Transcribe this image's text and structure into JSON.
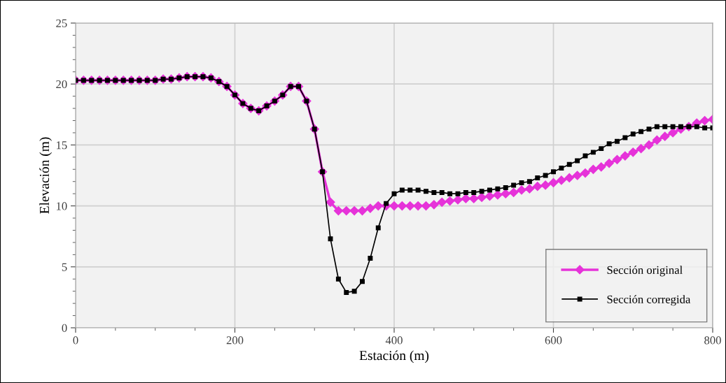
{
  "chart_data": {
    "type": "line",
    "xlabel": "Estación (m)",
    "ylabel": "Elevación (m)",
    "x": [
      0,
      10,
      20,
      30,
      40,
      50,
      60,
      70,
      80,
      90,
      100,
      110,
      120,
      130,
      140,
      150,
      160,
      170,
      180,
      190,
      200,
      210,
      220,
      230,
      240,
      250,
      260,
      270,
      280,
      290,
      300,
      310,
      320,
      330,
      340,
      350,
      360,
      370,
      380,
      390,
      400,
      410,
      420,
      430,
      440,
      450,
      460,
      470,
      480,
      490,
      500,
      510,
      520,
      530,
      540,
      550,
      560,
      570,
      580,
      590,
      600,
      610,
      620,
      630,
      640,
      650,
      660,
      670,
      680,
      690,
      700,
      710,
      720,
      730,
      740,
      750,
      760,
      770,
      780,
      790,
      800
    ],
    "series": [
      {
        "name": "Sección original",
        "color": "#e633d9",
        "marker": "diamond",
        "values": [
          20.3,
          20.3,
          20.3,
          20.3,
          20.3,
          20.3,
          20.3,
          20.3,
          20.3,
          20.3,
          20.3,
          20.4,
          20.4,
          20.5,
          20.6,
          20.6,
          20.6,
          20.5,
          20.2,
          19.8,
          19.1,
          18.4,
          18.0,
          17.8,
          18.2,
          18.6,
          19.1,
          19.8,
          19.8,
          18.6,
          16.3,
          12.8,
          10.3,
          9.6,
          9.6,
          9.6,
          9.6,
          9.8,
          10.0,
          10.0,
          10.0,
          10.0,
          10.0,
          10.0,
          10.0,
          10.1,
          10.3,
          10.4,
          10.5,
          10.6,
          10.6,
          10.7,
          10.8,
          10.9,
          11.0,
          11.1,
          11.3,
          11.4,
          11.6,
          11.7,
          11.9,
          12.1,
          12.3,
          12.5,
          12.7,
          13.0,
          13.2,
          13.5,
          13.8,
          14.1,
          14.4,
          14.7,
          15.0,
          15.4,
          15.7,
          16.0,
          16.3,
          16.5,
          16.8,
          17.0,
          17.1
        ]
      },
      {
        "name": "Sección corregida",
        "color": "#000000",
        "marker": "square",
        "values": [
          20.3,
          20.3,
          20.3,
          20.3,
          20.3,
          20.3,
          20.3,
          20.3,
          20.3,
          20.3,
          20.3,
          20.4,
          20.4,
          20.5,
          20.6,
          20.6,
          20.6,
          20.5,
          20.2,
          19.8,
          19.1,
          18.4,
          18.0,
          17.8,
          18.2,
          18.6,
          19.1,
          19.8,
          19.8,
          18.6,
          16.3,
          12.8,
          7.3,
          4.0,
          2.9,
          3.0,
          3.8,
          5.7,
          8.2,
          10.2,
          11.0,
          11.3,
          11.3,
          11.3,
          11.2,
          11.1,
          11.1,
          11.0,
          11.0,
          11.1,
          11.1,
          11.2,
          11.3,
          11.4,
          11.5,
          11.7,
          11.9,
          12.0,
          12.3,
          12.5,
          12.8,
          13.1,
          13.4,
          13.7,
          14.1,
          14.4,
          14.7,
          15.1,
          15.3,
          15.6,
          15.9,
          16.1,
          16.3,
          16.5,
          16.5,
          16.5,
          16.5,
          16.5,
          16.5,
          16.4,
          16.4
        ]
      }
    ],
    "xlim": [
      0,
      800
    ],
    "xticks": [
      0,
      200,
      400,
      600,
      800
    ],
    "ylim": [
      0,
      25
    ],
    "yticks": [
      0,
      5,
      10,
      15,
      20,
      25
    ],
    "grid": true,
    "legend": "lower right",
    "line_style": "solid"
  }
}
